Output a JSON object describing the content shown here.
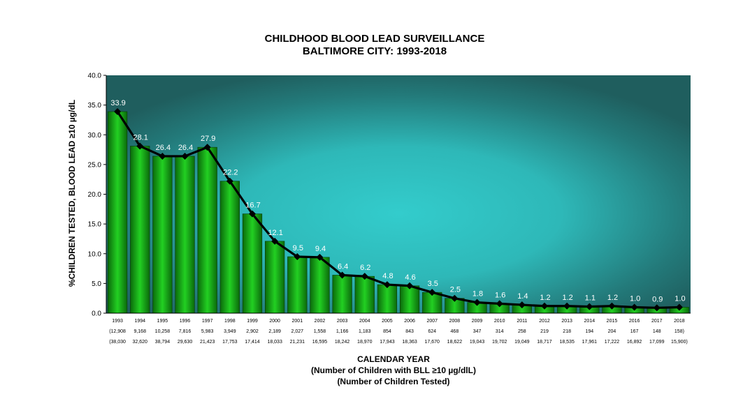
{
  "chart_data": {
    "type": "bar",
    "title": "CHILDHOOD BLOOD LEAD SURVEILLANCE",
    "subtitle": "BALTIMORE CITY: 1993-2018",
    "ylabel": "%CHILDREN TESTED, BLOOD LEAD ≥10 µg/dL",
    "xlabel": "CALENDAR YEAR",
    "xlabel_line2": "(Number of Children with BLL ≥10 µg/dlL)",
    "xlabel_line3": "(Number of Children Tested)",
    "ylim": [
      0,
      40
    ],
    "yticks": [
      "0.0",
      "5.0",
      "10.0",
      "15.0",
      "20.0",
      "25.0",
      "30.0",
      "35.0",
      "40.0"
    ],
    "categories": [
      "1993",
      "1994",
      "1995",
      "1996",
      "1997",
      "1998",
      "1999",
      "2000",
      "2001",
      "2002",
      "2003",
      "2004",
      "2005",
      "2006",
      "2007",
      "2008",
      "2009",
      "2010",
      "2011",
      "2012",
      "2013",
      "2014",
      "2015",
      "2016",
      "2017",
      "2018"
    ],
    "values": [
      33.9,
      28.1,
      26.4,
      26.4,
      27.9,
      22.2,
      16.7,
      12.1,
      9.5,
      9.4,
      6.4,
      6.2,
      4.8,
      4.6,
      3.5,
      2.5,
      1.8,
      1.6,
      1.4,
      1.2,
      1.2,
      1.1,
      1.2,
      1.0,
      0.9,
      1.0
    ],
    "value_labels": [
      "33.9",
      "28.1",
      "26.4",
      "26.4",
      "27.9",
      "22.2",
      "16.7",
      "12.1",
      "9.5",
      "9.4",
      "6.4",
      "6.2",
      "4.8",
      "4.6",
      "3.5",
      "2.5",
      "1.8",
      "1.6",
      "1.4",
      "1.2",
      "1.2",
      "1.1",
      "1.2",
      "1.0",
      "0.9",
      "1.0"
    ],
    "children_elevated_labels": [
      "(12,908",
      "9,168",
      "10,258",
      "7,816",
      "5,983",
      "3,949",
      "2,902",
      "2,189",
      "2,027",
      "1,558",
      "1,166",
      "1,183",
      "854",
      "843",
      "624",
      "468",
      "347",
      "314",
      "258",
      "219",
      "218",
      "194",
      "204",
      "167",
      "148",
      "158)"
    ],
    "children_tested_labels": [
      "(38,030",
      "32,620",
      "38,794",
      "29,630",
      "21,423",
      "17,753",
      "17,414",
      "18,033",
      "21,231",
      "16,595",
      "18,242",
      "18,970",
      "17,943",
      "18,363",
      "17,670",
      "18,622",
      "19,043",
      "19,702",
      "19,049",
      "18,717",
      "18,535",
      "17,961",
      "17,222",
      "16,892",
      "17,099",
      "15,900)"
    ],
    "series_overlay": "line with diamond markers",
    "colors": {
      "bar": "#19c419",
      "bar_dark": "#0c5a0c",
      "line": "#000000",
      "bg_center": "#33cccc",
      "bg_edge": "#1f5e5e"
    }
  }
}
